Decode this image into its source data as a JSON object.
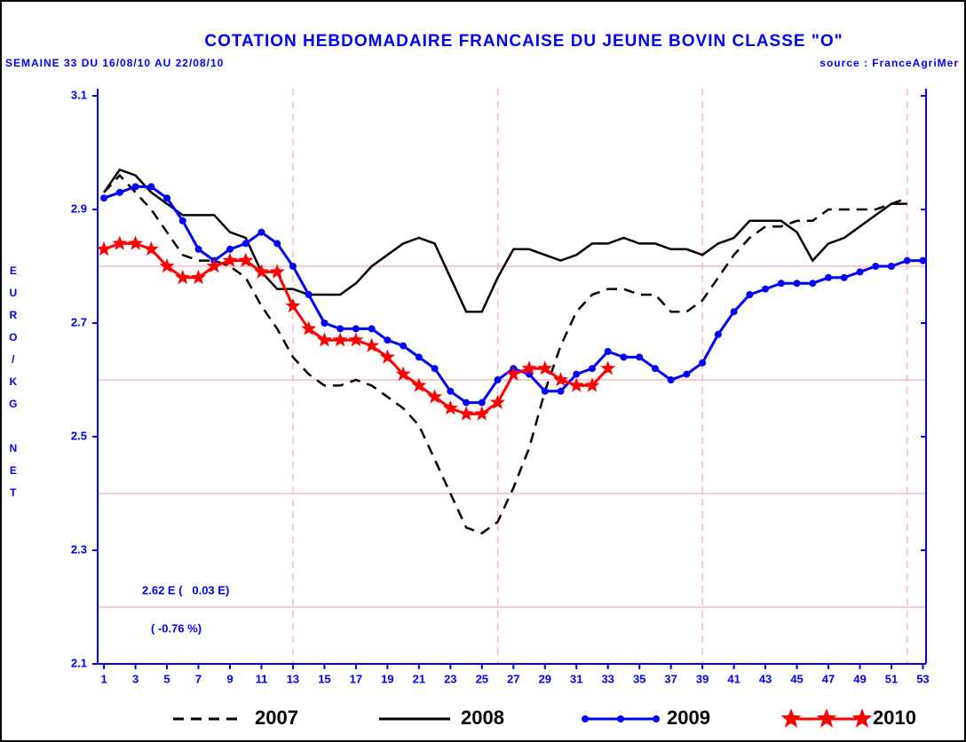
{
  "chart_data": {
    "type": "line",
    "title": "COTATION HEBDOMADAIRE FRANCAISE DU JEUNE BOVIN CLASSE \"O\"",
    "subtitle": "SEMAINE 33 DU 16/08/10 AU 22/08/10",
    "source": "source : FranceAgriMer",
    "y_label": "EURO/KG NET",
    "annotations": [
      "2.62 E (   0.03 E)",
      "( -0.76 %)"
    ],
    "x": [
      1,
      2,
      3,
      4,
      5,
      6,
      7,
      8,
      9,
      10,
      11,
      12,
      13,
      14,
      15,
      16,
      17,
      18,
      19,
      20,
      21,
      22,
      23,
      24,
      25,
      26,
      27,
      28,
      29,
      30,
      31,
      32,
      33,
      34,
      35,
      36,
      37,
      38,
      39,
      40,
      41,
      42,
      43,
      44,
      45,
      46,
      47,
      48,
      49,
      50,
      51,
      52,
      53
    ],
    "xlim": [
      0.6,
      53.2
    ],
    "xticks": [
      1,
      3,
      5,
      7,
      9,
      11,
      13,
      15,
      17,
      19,
      21,
      23,
      25,
      27,
      29,
      31,
      33,
      35,
      37,
      39,
      41,
      43,
      45,
      47,
      49,
      51,
      53
    ],
    "ylim": [
      2.1,
      3.1125
    ],
    "yticks": [
      2.1,
      2.3,
      2.5,
      2.7,
      2.9,
      3.1
    ],
    "hgrid": [
      2.2,
      2.4,
      2.6,
      2.8
    ],
    "vgrid": [
      13,
      26,
      39,
      52
    ],
    "grid_color": "#ffb6c1",
    "axis_color": "#0000ff",
    "series": [
      {
        "name": "2007",
        "color": "#000000",
        "dash": "dashed",
        "marker": "none",
        "values": [
          2.93,
          2.96,
          2.93,
          2.9,
          2.86,
          2.82,
          2.81,
          2.81,
          2.8,
          2.78,
          2.73,
          2.69,
          2.64,
          2.61,
          2.59,
          2.59,
          2.6,
          2.59,
          2.57,
          2.55,
          2.52,
          2.46,
          2.4,
          2.34,
          2.33,
          2.35,
          2.41,
          2.48,
          2.58,
          2.66,
          2.72,
          2.75,
          2.76,
          2.76,
          2.75,
          2.75,
          2.72,
          2.72,
          2.74,
          2.78,
          2.82,
          2.85,
          2.87,
          2.87,
          2.88,
          2.88,
          2.9,
          2.9,
          2.9,
          2.9,
          2.91,
          2.92,
          null
        ]
      },
      {
        "name": "2008",
        "color": "#000000",
        "dash": "solid",
        "marker": "none",
        "values": [
          2.93,
          2.97,
          2.96,
          2.93,
          2.91,
          2.89,
          2.89,
          2.89,
          2.86,
          2.85,
          2.79,
          2.76,
          2.76,
          2.75,
          2.75,
          2.75,
          2.77,
          2.8,
          2.82,
          2.84,
          2.85,
          2.84,
          2.78,
          2.72,
          2.72,
          2.78,
          2.83,
          2.83,
          2.82,
          2.81,
          2.82,
          2.84,
          2.84,
          2.85,
          2.84,
          2.84,
          2.83,
          2.83,
          2.82,
          2.84,
          2.85,
          2.88,
          2.88,
          2.88,
          2.86,
          2.81,
          2.84,
          2.85,
          2.87,
          2.89,
          2.91,
          2.91,
          null
        ]
      },
      {
        "name": "2009",
        "color": "#0000ff",
        "dash": "solid",
        "marker": "circle",
        "values": [
          2.92,
          2.93,
          2.94,
          2.94,
          2.92,
          2.88,
          2.83,
          2.81,
          2.83,
          2.84,
          2.86,
          2.84,
          2.8,
          2.75,
          2.7,
          2.69,
          2.69,
          2.69,
          2.67,
          2.66,
          2.64,
          2.62,
          2.58,
          2.56,
          2.56,
          2.6,
          2.62,
          2.61,
          2.58,
          2.58,
          2.61,
          2.62,
          2.65,
          2.64,
          2.64,
          2.62,
          2.6,
          2.61,
          2.63,
          2.68,
          2.72,
          2.75,
          2.76,
          2.77,
          2.77,
          2.77,
          2.78,
          2.78,
          2.79,
          2.8,
          2.8,
          2.81,
          2.81
        ]
      },
      {
        "name": "2010",
        "color": "#ff0000",
        "dash": "solid",
        "marker": "star",
        "values": [
          2.83,
          2.84,
          2.84,
          2.83,
          2.8,
          2.78,
          2.78,
          2.8,
          2.81,
          2.81,
          2.79,
          2.79,
          2.73,
          2.69,
          2.67,
          2.67,
          2.67,
          2.66,
          2.64,
          2.61,
          2.59,
          2.57,
          2.55,
          2.54,
          2.54,
          2.56,
          2.61,
          2.62,
          2.62,
          2.6,
          2.59,
          2.59,
          2.62,
          null,
          null,
          null,
          null,
          null,
          null,
          null,
          null,
          null,
          null,
          null,
          null,
          null,
          null,
          null,
          null,
          null,
          null,
          null,
          null
        ]
      }
    ]
  }
}
